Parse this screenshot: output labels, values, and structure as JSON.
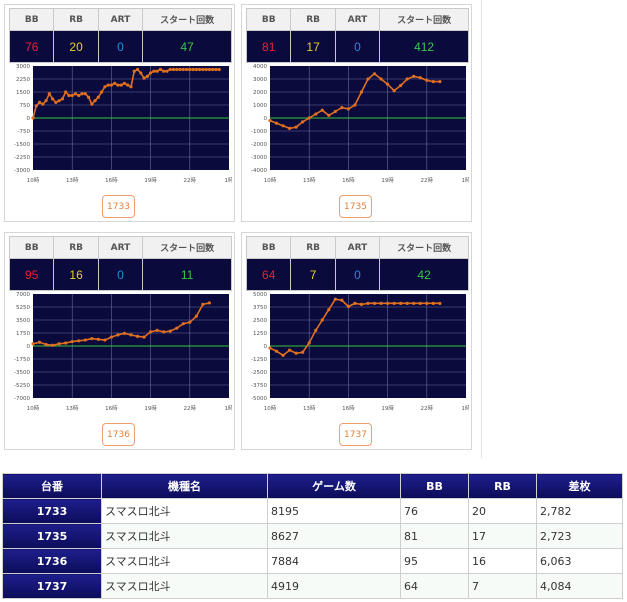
{
  "headers": {
    "bb": "BB",
    "rb": "RB",
    "art": "ART",
    "start": "スタート回数"
  },
  "colors": {
    "bb": "#e8213c",
    "rb": "#e6cf2b",
    "art": "#1f8fe0",
    "start": "#38c84a",
    "line": "#e07020",
    "zero": "#3bc23b",
    "grid": "#6a6a9a",
    "plot": "#0a0a3c"
  },
  "panels": [
    {
      "bb": "76",
      "rb": "20",
      "art": "0",
      "start": "47",
      "machine": "1733",
      "yticks": [
        "3000",
        "2250",
        "1500",
        "750",
        "0",
        "-750",
        "-1500",
        "-2250",
        "-3000"
      ],
      "xticks": [
        "10時",
        "13時",
        "16時",
        "19時",
        "22時",
        "1時"
      ],
      "chart_data": {
        "type": "line",
        "ylim": [
          -3000,
          3000
        ],
        "x": [
          0,
          0.25,
          0.5,
          0.75,
          1,
          1.25,
          1.5,
          1.75,
          2,
          2.25,
          2.5,
          2.75,
          3,
          3.25,
          3.5,
          3.75,
          4,
          4.25,
          4.5,
          4.75,
          5,
          5.25,
          5.5,
          5.75,
          6,
          6.25,
          6.5,
          6.75,
          7,
          7.25,
          7.5,
          7.75,
          8,
          8.25,
          8.5,
          8.75,
          9,
          9.25,
          9.5,
          9.75,
          10,
          10.25,
          10.5,
          10.75,
          11,
          11.25,
          11.5,
          11.75,
          12,
          12.25,
          12.5,
          12.75,
          13,
          13.25,
          13.5,
          13.75,
          14,
          14.25
        ],
        "y": [
          0,
          700,
          900,
          800,
          1000,
          1400,
          1100,
          900,
          1000,
          1100,
          1500,
          1300,
          1300,
          1400,
          1300,
          1400,
          1400,
          1200,
          800,
          1000,
          1200,
          1500,
          1800,
          1900,
          1900,
          2000,
          1900,
          1900,
          2000,
          1900,
          1800,
          2700,
          2800,
          2600,
          2300,
          2400,
          2600,
          2700,
          2700,
          2800,
          2700,
          2700,
          2800,
          2800,
          2800,
          2800,
          2800,
          2800,
          2800,
          2800,
          2800,
          2800,
          2800,
          2800,
          2800,
          2800,
          2800,
          2800
        ]
      }
    },
    {
      "bb": "81",
      "rb": "17",
      "art": "0",
      "start": "412",
      "machine": "1735",
      "yticks": [
        "4000",
        "3000",
        "2000",
        "1000",
        "0",
        "-1000",
        "-2000",
        "-3000",
        "-4000"
      ],
      "xticks": [
        "10時",
        "13時",
        "16時",
        "19時",
        "22時",
        "1時"
      ],
      "chart_data": {
        "type": "line",
        "ylim": [
          -4000,
          4000
        ],
        "x": [
          0,
          0.5,
          1,
          1.5,
          2,
          2.5,
          3,
          3.5,
          4,
          4.5,
          5,
          5.5,
          6,
          6.5,
          7,
          7.5,
          8,
          8.5,
          9,
          9.5,
          10,
          10.5,
          11,
          11.5,
          12,
          12.5,
          13
        ],
        "y": [
          -200,
          -400,
          -600,
          -800,
          -700,
          -300,
          0,
          300,
          600,
          200,
          500,
          800,
          700,
          1000,
          2000,
          3000,
          3400,
          3000,
          2600,
          2100,
          2500,
          3000,
          3200,
          3100,
          2900,
          2800,
          2800
        ]
      }
    },
    {
      "bb": "95",
      "rb": "16",
      "art": "0",
      "start": "11",
      "machine": "1736",
      "yticks": [
        "7000",
        "5250",
        "3500",
        "1750",
        "0",
        "-1750",
        "-3500",
        "-5250",
        "-7000"
      ],
      "xticks": [
        "10時",
        "13時",
        "16時",
        "19時",
        "22時",
        "1時"
      ],
      "chart_data": {
        "type": "line",
        "ylim": [
          -7000,
          7000
        ],
        "x": [
          0,
          0.5,
          1,
          1.5,
          2,
          2.5,
          3,
          3.5,
          4,
          4.5,
          5,
          5.5,
          6,
          6.5,
          7,
          7.5,
          8,
          8.5,
          9,
          9.5,
          10,
          10.5,
          11,
          11.5,
          12,
          12.5,
          13,
          13.5
        ],
        "y": [
          300,
          500,
          200,
          100,
          300,
          400,
          600,
          700,
          800,
          1000,
          900,
          800,
          1200,
          1500,
          1700,
          1500,
          1300,
          1200,
          1900,
          2100,
          1900,
          2000,
          2400,
          3000,
          3200,
          4000,
          5600,
          5800
        ]
      }
    },
    {
      "bb": "64",
      "rb": "7",
      "art": "0",
      "start": "42",
      "machine": "1737",
      "yticks": [
        "5000",
        "3750",
        "2500",
        "1250",
        "0",
        "-1250",
        "-2500",
        "-3750",
        "-5000"
      ],
      "xticks": [
        "10時",
        "13時",
        "16時",
        "19時",
        "22時",
        "1時"
      ],
      "chart_data": {
        "type": "line",
        "ylim": [
          -5000,
          5000
        ],
        "x": [
          0,
          0.5,
          1,
          1.5,
          2,
          2.5,
          3,
          3.5,
          4,
          4.5,
          5,
          5.5,
          6,
          6.5,
          7,
          7.5,
          8,
          8.5,
          9,
          9.5,
          10,
          10.5,
          11,
          11.5,
          12,
          12.5,
          13
        ],
        "y": [
          -200,
          -500,
          -900,
          -400,
          -700,
          -600,
          300,
          1500,
          2500,
          3500,
          4500,
          4400,
          3800,
          4100,
          4000,
          4100,
          4100,
          4100,
          4100,
          4100,
          4100,
          4100,
          4100,
          4100,
          4100,
          4100,
          4100
        ]
      }
    }
  ],
  "table": {
    "columns": [
      "台番",
      "機種名",
      "ゲーム数",
      "BB",
      "RB",
      "差枚"
    ],
    "rows": [
      [
        "1733",
        "スマスロ北斗",
        "8195",
        "76",
        "20",
        "2,782"
      ],
      [
        "1735",
        "スマスロ北斗",
        "8627",
        "81",
        "17",
        "2,723"
      ],
      [
        "1736",
        "スマスロ北斗",
        "7884",
        "95",
        "16",
        "6,063"
      ],
      [
        "1737",
        "スマスロ北斗",
        "4919",
        "64",
        "7",
        "4,084"
      ]
    ]
  }
}
